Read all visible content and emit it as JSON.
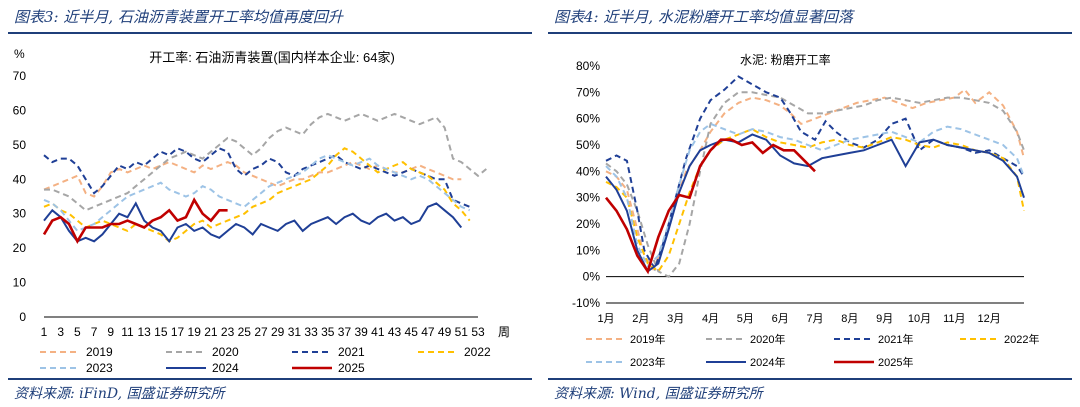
{
  "left": {
    "title": "图表3: 近半月, 石油沥青装置开工率均值再度回升",
    "source": "资料来源: iFinD, 国盛证券研究所",
    "chart_data": {
      "type": "line",
      "title": "开工率: 石油沥青装置(国内样本企业: 64家)",
      "ylabel": "%",
      "xlabel": "周",
      "ylim": [
        0,
        70
      ],
      "yticks": [
        0,
        10,
        20,
        30,
        40,
        50,
        60,
        70
      ],
      "xticks": [
        1,
        3,
        5,
        7,
        9,
        11,
        13,
        15,
        17,
        19,
        21,
        23,
        25,
        27,
        29,
        31,
        33,
        35,
        37,
        39,
        41,
        43,
        45,
        47,
        49,
        51,
        53
      ],
      "xlim": [
        1,
        53
      ],
      "legend": "bottom",
      "series": [
        {
          "name": "2019",
          "color": "#f4b183",
          "dash": "6,4",
          "values": [
            37,
            38,
            39,
            40,
            41,
            36,
            35,
            38,
            42,
            43,
            42,
            43,
            44,
            43,
            44,
            45,
            44,
            43,
            42,
            44,
            43,
            44,
            45,
            44,
            42,
            41,
            40,
            39,
            38,
            39,
            40,
            40,
            41,
            42,
            42,
            43,
            44,
            45,
            44,
            43,
            44,
            43,
            42,
            42,
            43,
            44,
            43,
            42,
            41,
            40,
            40
          ]
        },
        {
          "name": "2020",
          "color": "#a6a6a6",
          "dash": "6,4",
          "values": [
            37,
            37,
            36,
            35,
            33,
            31,
            32,
            33,
            34,
            35,
            36,
            38,
            40,
            42,
            44,
            46,
            47,
            48,
            47,
            46,
            48,
            50,
            52,
            51,
            49,
            47,
            49,
            52,
            54,
            55,
            54,
            53,
            56,
            58,
            59,
            58,
            57,
            58,
            59,
            58,
            57,
            58,
            59,
            58,
            57,
            56,
            57,
            58,
            55,
            46,
            45,
            43,
            41,
            43
          ]
        },
        {
          "name": "2021",
          "color": "#1f3f96",
          "dash": "6,4",
          "values": [
            47,
            45,
            46,
            46,
            44,
            40,
            36,
            38,
            41,
            44,
            43,
            45,
            44,
            46,
            48,
            47,
            49,
            48,
            46,
            45,
            47,
            49,
            48,
            43,
            41,
            43,
            44,
            46,
            45,
            42,
            41,
            43,
            44,
            45,
            46,
            47,
            45,
            44,
            43,
            44,
            43,
            42,
            41,
            42,
            43,
            42,
            41,
            40,
            40,
            34,
            33,
            32
          ]
        },
        {
          "name": "2022",
          "color": "#ffc000",
          "dash": "6,4",
          "values": [
            32,
            33,
            31,
            30,
            28,
            26,
            27,
            28,
            27,
            26,
            25,
            27,
            26,
            25,
            24,
            22,
            23,
            25,
            27,
            28,
            26,
            27,
            28,
            29,
            30,
            32,
            33,
            34,
            36,
            37,
            38,
            39,
            40,
            42,
            44,
            47,
            49,
            48,
            46,
            44,
            42,
            43,
            44,
            45,
            43,
            42,
            41,
            39,
            37,
            33,
            31,
            28
          ]
        },
        {
          "name": "2023",
          "color": "#9dc3e6",
          "dash": "6,4",
          "values": [
            34,
            33,
            31,
            28,
            25,
            26,
            27,
            29,
            31,
            33,
            35,
            36,
            37,
            38,
            39,
            37,
            36,
            35,
            36,
            38,
            37,
            35,
            34,
            33,
            32,
            34,
            36,
            38,
            39,
            40,
            41,
            42,
            44,
            46,
            47,
            46,
            45,
            44,
            45,
            46,
            44,
            43,
            42,
            41,
            40,
            41,
            40,
            38,
            36,
            34,
            32,
            31
          ]
        },
        {
          "name": "2024",
          "color": "#1f3f96",
          "dash": "",
          "values": [
            28,
            31,
            29,
            25,
            22,
            23,
            22,
            24,
            27,
            30,
            29,
            33,
            28,
            26,
            25,
            22,
            26,
            27,
            25,
            26,
            24,
            23,
            25,
            27,
            26,
            24,
            27,
            26,
            25,
            27,
            28,
            25,
            27,
            28,
            29,
            27,
            29,
            30,
            28,
            27,
            29,
            30,
            28,
            29,
            27,
            28,
            32,
            33,
            31,
            29,
            26
          ]
        },
        {
          "name": "2025",
          "color": "#c00000",
          "dash": "",
          "values": [
            24,
            28,
            29,
            27,
            22,
            26,
            26,
            26,
            27,
            27,
            28,
            27,
            26,
            28,
            29,
            31,
            28,
            29,
            34,
            30,
            28,
            31,
            31
          ]
        }
      ]
    }
  },
  "right": {
    "title": "图表4: 近半月, 水泥粉磨开工率均值显著回落",
    "source": "资料来源: Wind, 国盛证券研究所",
    "chart_data": {
      "type": "line",
      "title": "水泥: 粉磨开工率",
      "ylim": [
        -10,
        80
      ],
      "yticks": [
        "-10%",
        "0%",
        "10%",
        "20%",
        "30%",
        "40%",
        "50%",
        "60%",
        "70%",
        "80%"
      ],
      "yvals": [
        -10,
        0,
        10,
        20,
        30,
        40,
        50,
        60,
        70,
        80
      ],
      "xticks": [
        "1月",
        "2月",
        "3月",
        "4月",
        "5月",
        "6月",
        "7月",
        "8月",
        "9月",
        "10月",
        "11月",
        "12月"
      ],
      "xlim": [
        1,
        13
      ],
      "legend": "bottom",
      "series": [
        {
          "name": "2019年",
          "color": "#f4b183",
          "dash": "6,4",
          "x": [
            1,
            1.3,
            1.6,
            1.9,
            2.1,
            2.35,
            2.6,
            2.9,
            3.3,
            3.7,
            4,
            4.4,
            4.8,
            5.2,
            5.6,
            6,
            6.3,
            6.6,
            7,
            7.4,
            7.8,
            8.2,
            8.6,
            9,
            9.4,
            9.8,
            10.2,
            10.6,
            11,
            11.3,
            11.6,
            12,
            12.4,
            12.8,
            13
          ],
          "values": [
            40,
            38,
            33,
            18,
            8,
            3,
            10,
            25,
            40,
            48,
            55,
            62,
            66,
            68,
            67,
            65,
            62,
            58,
            60,
            62,
            64,
            66,
            67,
            68,
            66,
            64,
            66,
            67,
            68,
            71,
            66,
            70,
            65,
            55,
            45
          ]
        },
        {
          "name": "2020年",
          "color": "#a6a6a6",
          "dash": "6,4",
          "x": [
            1,
            1.3,
            1.6,
            1.9,
            2.2,
            2.5,
            2.8,
            3.1,
            3.4,
            3.7,
            4,
            4.4,
            4.8,
            5.2,
            5.6,
            6,
            6.4,
            6.8,
            7.2,
            7.6,
            8,
            8.4,
            8.8,
            9.2,
            9.6,
            10,
            10.4,
            10.8,
            11.2,
            11.6,
            12,
            12.4,
            12.8,
            13
          ],
          "values": [
            43,
            40,
            35,
            25,
            12,
            2,
            0,
            5,
            20,
            40,
            58,
            66,
            70,
            70,
            69,
            68,
            65,
            62,
            62,
            63,
            64,
            65,
            67,
            68,
            67,
            66,
            67,
            68,
            68,
            67,
            66,
            63,
            55,
            48
          ]
        },
        {
          "name": "2021年",
          "color": "#1f3f96",
          "dash": "6,4",
          "x": [
            1,
            1.3,
            1.6,
            1.9,
            2.1,
            2.4,
            2.7,
            3,
            3.3,
            3.7,
            4,
            4.4,
            4.8,
            5.2,
            5.6,
            6,
            6.3,
            6.6,
            7,
            7.3,
            7.6,
            8,
            8.4,
            8.8,
            9.2,
            9.6,
            10,
            10.4,
            10.8,
            11.2,
            11.6,
            12,
            12.4,
            12.8,
            13
          ],
          "values": [
            44,
            46,
            44,
            25,
            10,
            3,
            15,
            30,
            45,
            60,
            67,
            71,
            76,
            73,
            70,
            68,
            62,
            55,
            52,
            59,
            55,
            51,
            49,
            52,
            58,
            60,
            48,
            52,
            50,
            49,
            47,
            48,
            45,
            42,
            38
          ]
        },
        {
          "name": "2022年",
          "color": "#ffc000",
          "dash": "6,4",
          "x": [
            1,
            1.3,
            1.6,
            1.9,
            2.2,
            2.5,
            2.8,
            3.1,
            3.4,
            3.7,
            4,
            4.4,
            4.8,
            5.2,
            5.6,
            6,
            6.4,
            6.8,
            7.2,
            7.6,
            8,
            8.4,
            8.8,
            9.2,
            9.6,
            10,
            10.4,
            10.8,
            11.2,
            11.6,
            12,
            12.4,
            12.8,
            13
          ],
          "values": [
            36,
            34,
            30,
            15,
            5,
            2,
            8,
            20,
            32,
            42,
            48,
            52,
            54,
            56,
            53,
            51,
            50,
            49,
            51,
            52,
            50,
            49,
            51,
            53,
            52,
            50,
            49,
            51,
            50,
            48,
            47,
            45,
            38,
            25
          ]
        },
        {
          "name": "2023年",
          "color": "#9dc3e6",
          "dash": "6,4",
          "x": [
            1,
            1.3,
            1.6,
            1.9,
            2.2,
            2.5,
            2.8,
            3.1,
            3.4,
            3.7,
            4,
            4.4,
            4.8,
            5.2,
            5.6,
            6,
            6.4,
            6.8,
            7.2,
            7.6,
            8,
            8.4,
            8.8,
            9.2,
            9.6,
            10,
            10.4,
            10.8,
            11.2,
            11.6,
            12,
            12.4,
            12.8,
            13
          ],
          "values": [
            42,
            38,
            30,
            12,
            4,
            8,
            20,
            35,
            48,
            55,
            58,
            56,
            54,
            56,
            55,
            53,
            52,
            50,
            48,
            50,
            52,
            53,
            54,
            55,
            53,
            51,
            55,
            57,
            56,
            54,
            52,
            50,
            45,
            38
          ]
        },
        {
          "name": "2024年",
          "color": "#1f3f96",
          "dash": "",
          "x": [
            1,
            1.3,
            1.6,
            1.9,
            2.2,
            2.5,
            2.8,
            3.1,
            3.4,
            3.7,
            4,
            4.4,
            4.8,
            5.2,
            5.6,
            6,
            6.4,
            6.8,
            7.2,
            7.6,
            8,
            8.4,
            8.8,
            9.2,
            9.6,
            10,
            10.4,
            10.8,
            11.2,
            11.6,
            12,
            12.4,
            12.8,
            13
          ],
          "values": [
            38,
            33,
            25,
            10,
            2,
            5,
            18,
            32,
            42,
            48,
            50,
            52,
            51,
            54,
            52,
            46,
            43,
            42,
            45,
            46,
            47,
            48,
            50,
            52,
            42,
            51,
            52,
            50,
            49,
            48,
            47,
            44,
            38,
            30
          ]
        },
        {
          "name": "2025年",
          "color": "#c00000",
          "dash": "",
          "x": [
            1,
            1.3,
            1.6,
            1.9,
            2.2,
            2.5,
            2.8,
            3.1,
            3.4,
            3.7,
            4,
            4.3,
            4.6,
            4.9,
            5.2,
            5.5,
            5.8,
            6.1,
            6.4,
            6.7,
            7
          ],
          "values": [
            30,
            25,
            18,
            8,
            2,
            15,
            25,
            31,
            30,
            42,
            48,
            52,
            52,
            50,
            51,
            47,
            50,
            48,
            48,
            44,
            40
          ]
        }
      ]
    }
  }
}
